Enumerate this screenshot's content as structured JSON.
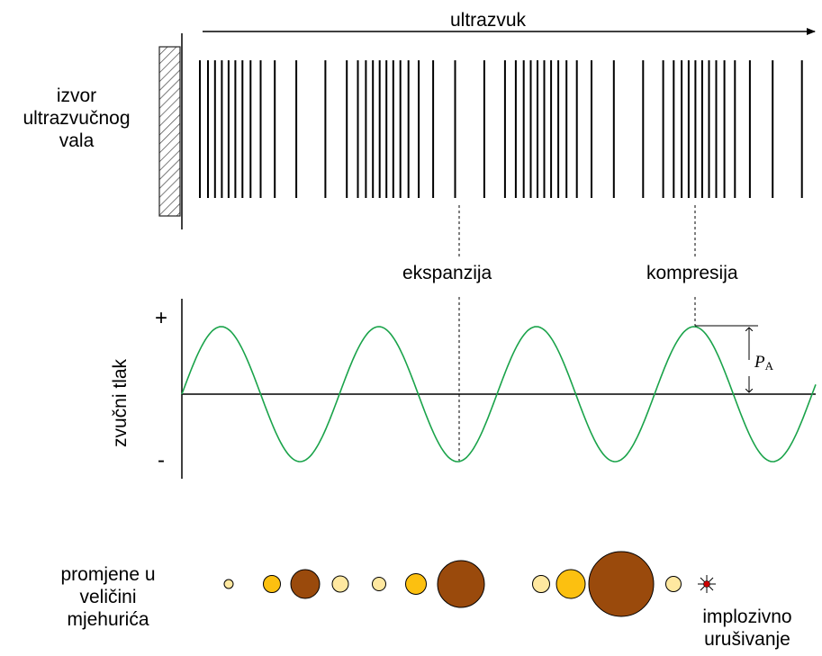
{
  "labels": {
    "top_arrow": "ultrazvuk",
    "source_line1": "izvor",
    "source_line2": "ultrazvučnog",
    "source_line3": "vala",
    "expansion": "ekspanzija",
    "compression": "kompresija",
    "y_axis": "zvučni tlak",
    "plus": "+",
    "minus": "-",
    "amplitude_symbol": "P",
    "amplitude_sub": "A",
    "bubble_line1": "promjene u",
    "bubble_line2": "veličini",
    "bubble_line3": "mjehurića",
    "implosion_line1": "implozivno",
    "implosion_line2": "urušivanje"
  },
  "colors": {
    "wave": "#1aa34a",
    "bubble_small": "#ffe8a0",
    "bubble_medium": "#fcc010",
    "bubble_large": "#9a4a0c",
    "implosion": "#cc0000"
  },
  "bubbles": [
    {
      "size": "small"
    },
    {
      "size": "medium"
    },
    {
      "size": "large"
    },
    {
      "size": "small"
    },
    {
      "size": "small"
    },
    {
      "size": "medium"
    },
    {
      "size": "large"
    },
    {
      "size": "small"
    },
    {
      "size": "medium"
    },
    {
      "size": "large"
    },
    {
      "size": "small"
    }
  ]
}
